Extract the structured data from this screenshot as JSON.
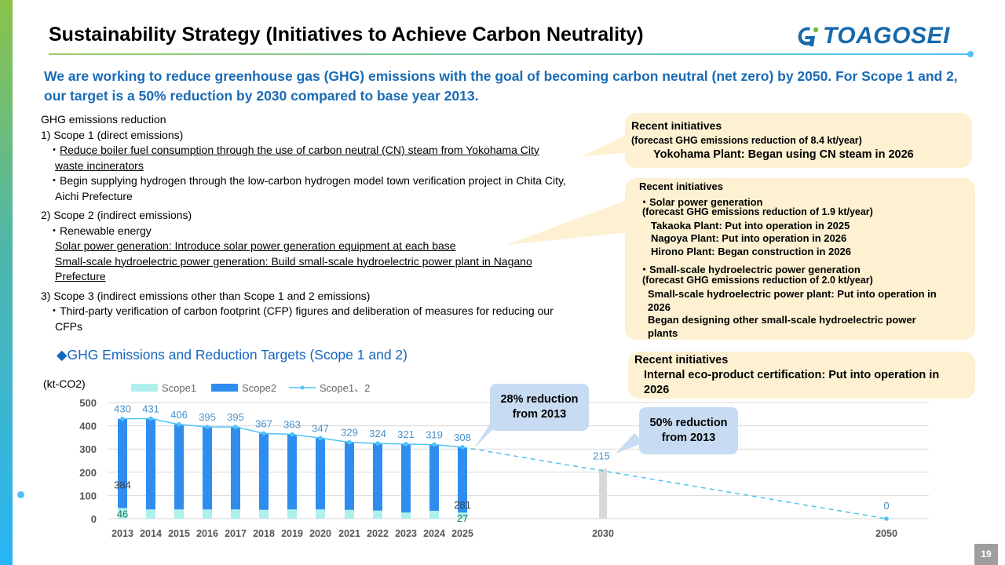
{
  "slide": {
    "title": "Sustainability Strategy (Initiatives to Achieve Carbon Neutrality)",
    "logo_text": "TOAGOSEI",
    "page_number": "19"
  },
  "lead": "We are working to reduce greenhouse gas (GHG) emissions with the goal of becoming carbon neutral (net zero) by 2050. For Scope 1 and 2, our target is a 50% reduction by 2030 compared to base year 2013.",
  "body": {
    "heading": "GHG emissions reduction",
    "scope1_title": "1) Scope 1 (direct emissions)",
    "scope1_item1_prefix": "・",
    "scope1_item1_line1": "Reduce boiler fuel consumption through the use of carbon neutral (CN) steam from Yokohama City",
    "scope1_item1_line2": "waste incinerators",
    "scope1_item2_line1": "・Begin supplying hydrogen through the low-carbon hydrogen model town verification project in Chita City,",
    "scope1_item2_line2": "Aichi Prefecture",
    "scope2_title": "2) Scope 2 (indirect emissions)",
    "scope2_sub": "・Renewable energy",
    "scope2_line1": "Solar power generation: Introduce solar power generation equipment at each base",
    "scope2_line2": "Small-scale hydroelectric power generation: Build small-scale hydroelectric power plant in Nagano",
    "scope2_line3": "Prefecture",
    "scope3_title": "3) Scope 3 (indirect emissions other than Scope 1 and 2 emissions)",
    "scope3_line1": "・Third-party verification of carbon footprint (CFP) figures and deliberation of measures for reducing our",
    "scope3_line2": "CFPs"
  },
  "callouts": {
    "c1_title": "Recent initiatives",
    "c1_line1": "(forecast GHG emissions reduction of 8.4 kt/year)",
    "c1_line2": "Yokohama Plant: Began using CN steam in 2026",
    "c2_title": "Recent initiatives",
    "c2_solar": "・Solar power generation",
    "c2_solar_forecast": "(forecast GHG emissions reduction of 1.9 kt/year)",
    "c2_solar_1": "Takaoka Plant: Put into operation in 2025",
    "c2_solar_2": "Nagoya Plant: Put into operation in 2026",
    "c2_solar_3": "Hirono Plant: Began construction in 2026",
    "c2_hydro": "・Small-scale hydroelectric power generation",
    "c2_hydro_forecast": "(forecast GHG emissions reduction of 2.0 kt/year)",
    "c2_hydro_1a": "Small-scale hydroelectric power plant: Put into operation in",
    "c2_hydro_1b": "2026",
    "c2_hydro_2a": "Began designing other small-scale hydroelectric power",
    "c2_hydro_2b": "plants",
    "c3_title": "Recent initiatives",
    "c3_line1": "Internal eco-product certification: Put into operation in",
    "c3_line2": "2026"
  },
  "chart_section_title": "◆GHG Emissions and Reduction Targets (Scope 1 and 2)",
  "unit_label": "(kt-CO2)",
  "bubbles": {
    "b1_line1": "28% reduction",
    "b1_line2": "from 2013",
    "b2_line1": "50% reduction",
    "b2_line2": "from 2013"
  },
  "chart_data": {
    "type": "bar",
    "categories": [
      "2013",
      "2014",
      "2015",
      "2016",
      "2017",
      "2018",
      "2019",
      "2020",
      "2021",
      "2022",
      "2023",
      "2024",
      "2025",
      "2030",
      "2050"
    ],
    "series": [
      {
        "name": "Scope1",
        "values": [
          46,
          40,
          40,
          40,
          40,
          38,
          40,
          40,
          38,
          35,
          27,
          34,
          27,
          null,
          null
        ]
      },
      {
        "name": "Scope2",
        "values": [
          384,
          391,
          366,
          355,
          355,
          329,
          323,
          307,
          291,
          289,
          294,
          285,
          281,
          null,
          null
        ]
      },
      {
        "name": "Scope1、2",
        "values": [
          430,
          431,
          406,
          395,
          395,
          367,
          363,
          347,
          329,
          324,
          321,
          319,
          308,
          215,
          0
        ]
      }
    ],
    "target_bar": {
      "category": "2030",
      "value": 215
    },
    "data_labels": {
      "totals": [
        "430",
        "431",
        "406",
        "395",
        "395",
        "367",
        "363",
        "347",
        "329",
        "324",
        "321",
        "319",
        "308",
        "215",
        "0"
      ],
      "scope2_2013": "384",
      "scope1_2013": "46",
      "scope2_2025": "281",
      "scope1_2025": "27"
    },
    "yticks": [
      "0",
      "100",
      "200",
      "300",
      "400",
      "500"
    ],
    "ylim": [
      0,
      500
    ],
    "legend_position": "top",
    "grid": true,
    "colors": {
      "Scope1": "#aef0ec",
      "Scope2": "#2f8df0",
      "Scope1、2": "#4fc3f7",
      "target_bar": "#d9d9d9"
    }
  }
}
